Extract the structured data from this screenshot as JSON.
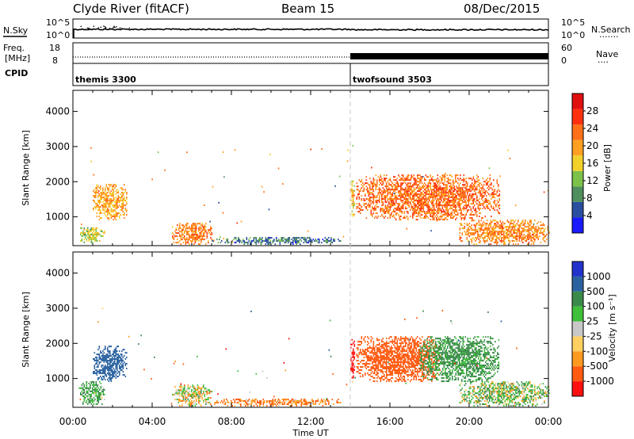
{
  "header": {
    "station": "Clyde River (fitACF)",
    "beam": "Beam 15",
    "date": "08/Dec/2015"
  },
  "noise_panel": {
    "left_label": "N.Sky",
    "left_ticks": [
      "10^5",
      "10^0"
    ],
    "right_ticks": [
      "10^5",
      "10^0"
    ],
    "right_label": "N.Search",
    "right_label_marker": "·······"
  },
  "freq_panel": {
    "left_label_top": "Freq.",
    "left_label_bottom": "[MHz]",
    "left_ticks": [
      "18",
      "8"
    ],
    "right_ticks": [
      "60",
      "0"
    ],
    "right_label": "Nave",
    "right_label_marker": "····"
  },
  "cpid_panel": {
    "label": "CPID",
    "segments": [
      {
        "name": "themis 3300",
        "start_h": 0,
        "end_h": 14
      },
      {
        "name": "twofsound 3503",
        "start_h": 14,
        "end_h": 24
      }
    ]
  },
  "colors": {
    "power_scale": [
      "#1a1aff",
      "#2a4ea0",
      "#4f8f5e",
      "#7cc24a",
      "#f2d12a",
      "#ffa020",
      "#ff7018",
      "#ff3010",
      "#e01010"
    ],
    "velocity_scale": [
      "#ff1010",
      "#ff5a10",
      "#ff9a20",
      "#ffcf60",
      "#c8c8c8",
      "#3fbf3a",
      "#3a8a4a",
      "#2a62a0",
      "#2233cc"
    ]
  },
  "chart_data": [
    {
      "type": "heatmap",
      "title": "",
      "xlabel": "Time UT",
      "ylabel": "Slant Range [km]",
      "xlim": [
        "00:00",
        "24:00"
      ],
      "ylim": [
        180,
        4600
      ],
      "x_ticks": [
        "00:00",
        "04:00",
        "08:00",
        "12:00",
        "16:00",
        "20:00",
        "00:00"
      ],
      "y_ticks": [
        "1000",
        "2000",
        "3000",
        "4000"
      ],
      "colorbar": {
        "label": "Power [dB]",
        "range": [
          0,
          32
        ],
        "ticks": [
          "4",
          "8",
          "12",
          "16",
          "20",
          "24",
          "28"
        ]
      },
      "echo_regions": [
        {
          "t_start": 0.3,
          "t_end": 1.6,
          "r_min": 250,
          "r_max": 700,
          "level": 16
        },
        {
          "t_start": 1.0,
          "t_end": 2.7,
          "r_min": 900,
          "r_max": 1900,
          "level": 22
        },
        {
          "t_start": 5.0,
          "t_end": 7.0,
          "r_min": 200,
          "r_max": 800,
          "level": 24
        },
        {
          "t_start": 7.0,
          "t_end": 13.5,
          "r_min": 200,
          "r_max": 400,
          "level": 8
        },
        {
          "t_start": 14.0,
          "t_end": 14.2,
          "r_min": 1000,
          "r_max": 2100,
          "level": 20
        },
        {
          "t_start": 14.3,
          "t_end": 21.5,
          "r_min": 900,
          "r_max": 2200,
          "level": 26
        },
        {
          "t_start": 19.5,
          "t_end": 24.0,
          "r_min": 200,
          "r_max": 900,
          "level": 24
        }
      ]
    },
    {
      "type": "heatmap",
      "title": "",
      "xlabel": "Time UT",
      "ylabel": "Slant Range [km]",
      "xlim": [
        "00:00",
        "24:00"
      ],
      "ylim": [
        180,
        4600
      ],
      "x_ticks": [
        "00:00",
        "04:00",
        "08:00",
        "12:00",
        "16:00",
        "20:00",
        "00:00"
      ],
      "y_ticks": [
        "1000",
        "2000",
        "3000",
        "4000"
      ],
      "colorbar": {
        "label": "Velocity [m s⁻¹]",
        "ticks": [
          "1000",
          "500",
          "100",
          "25",
          "-25",
          "-100",
          "-500",
          "-1000"
        ]
      },
      "echo_regions": [
        {
          "t_start": 0.3,
          "t_end": 1.6,
          "r_min": 250,
          "r_max": 900,
          "velocity": 100
        },
        {
          "t_start": 1.0,
          "t_end": 2.7,
          "r_min": 900,
          "r_max": 1900,
          "velocity": 700
        },
        {
          "t_start": 5.0,
          "t_end": 7.0,
          "r_min": 200,
          "r_max": 800,
          "velocity": 0
        },
        {
          "t_start": 7.0,
          "t_end": 13.5,
          "r_min": 200,
          "r_max": 400,
          "velocity": -100
        },
        {
          "t_start": 14.0,
          "t_end": 14.2,
          "r_min": 1000,
          "r_max": 2100,
          "velocity": -700
        },
        {
          "t_start": 14.3,
          "t_end": 18.5,
          "r_min": 900,
          "r_max": 2200,
          "velocity": -250
        },
        {
          "t_start": 17.5,
          "t_end": 21.5,
          "r_min": 900,
          "r_max": 2200,
          "velocity": 150
        },
        {
          "t_start": 19.5,
          "t_end": 24.0,
          "r_min": 200,
          "r_max": 900,
          "velocity": 50
        }
      ]
    }
  ]
}
